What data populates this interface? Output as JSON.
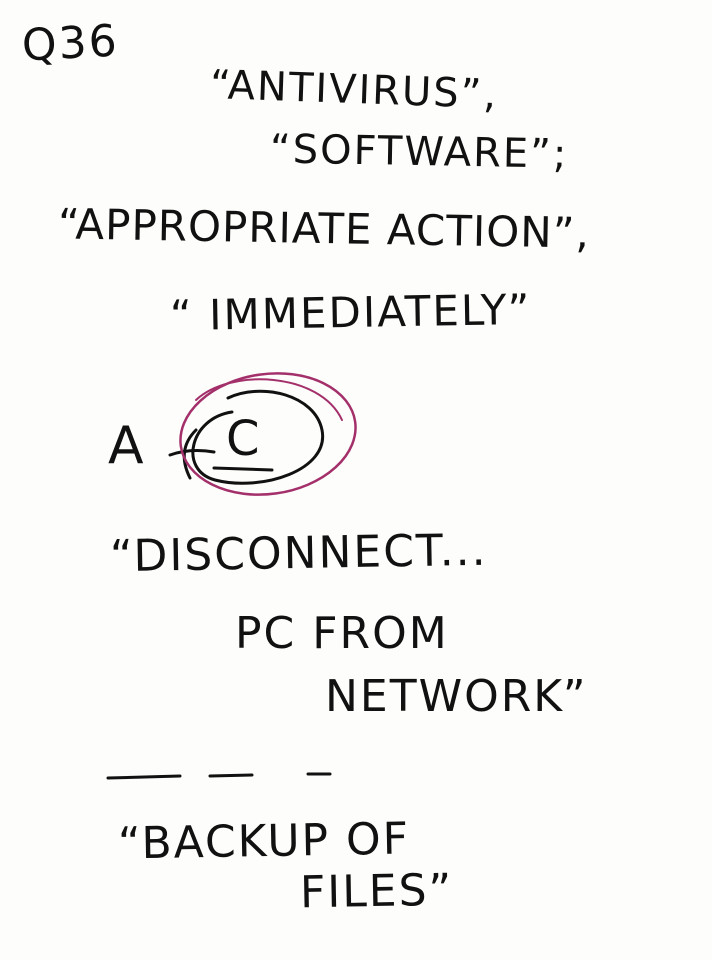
{
  "note": {
    "question_number": "Q36",
    "lines": [
      "“ANTIVIRUS”,",
      "“SOFTWARE”;",
      "“APPROPRIATE ACTION”,",
      "“ IMMEDIATELY”",
      "“DISCONNECT...",
      "PC FROM",
      "NETWORK”",
      "“BACKUP OF",
      "FILES”"
    ],
    "option_a": "A",
    "option_c": "C"
  },
  "colors": {
    "ink": "#111111",
    "circle": "#a3306a",
    "paper": "#fdfdfb"
  }
}
